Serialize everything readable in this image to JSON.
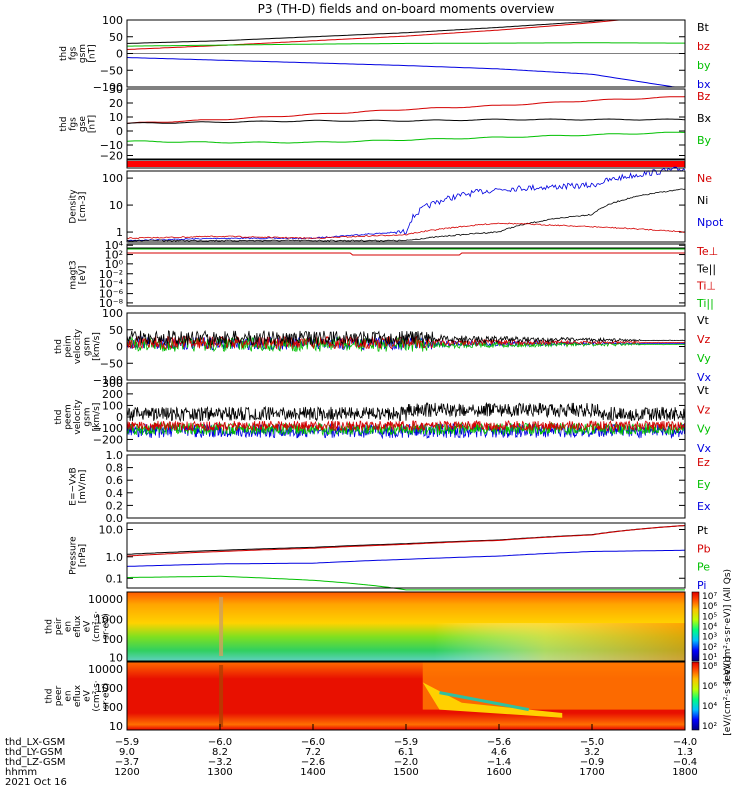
{
  "title": "P3 (TH-D) fields and on-board moments overview",
  "colors": {
    "black": "#000000",
    "red": "#d40000",
    "green": "#00c000",
    "blue": "#0000e0"
  },
  "panels": [
    {
      "ylabel": [
        "thd",
        "fgs",
        "gsm",
        "[nT]"
      ],
      "yticks": [
        "100",
        "50",
        "0",
        "−50",
        "−100"
      ],
      "legend": [
        {
          "text": "Bt",
          "color": "black"
        },
        {
          "text": "bz",
          "color": "red"
        },
        {
          "text": "by",
          "color": "green"
        },
        {
          "text": "bx",
          "color": "blue"
        }
      ]
    },
    {
      "ylabel": [
        "thd",
        "fgs",
        "gse",
        "[nT]"
      ],
      "yticks": [
        "30",
        "20",
        "10",
        "0",
        "−10",
        "−20"
      ],
      "legend": [
        {
          "text": "Bz",
          "color": "red"
        },
        {
          "text": "Bx",
          "color": "black"
        },
        {
          "text": "By",
          "color": "green"
        }
      ]
    },
    {
      "ylabel": [],
      "yticks": [],
      "legend": []
    },
    {
      "ylabel": [
        "Density",
        "[cm-3]"
      ],
      "yticks": [
        "100",
        "10",
        "1"
      ],
      "legend": [
        {
          "text": "Ne",
          "color": "red"
        },
        {
          "text": "Ni",
          "color": "black"
        },
        {
          "text": "Npot",
          "color": "blue"
        }
      ]
    },
    {
      "ylabel": [
        "magt3",
        "[eV]"
      ],
      "yticks": [
        "10⁴",
        "10²",
        "10⁰",
        "10⁻²",
        "10⁻⁴",
        "10⁻⁶",
        "10⁻⁸"
      ],
      "legend": [
        {
          "text": "Te⊥",
          "color": "red"
        },
        {
          "text": "Te||",
          "color": "black"
        },
        {
          "text": "Ti⊥",
          "color": "red"
        },
        {
          "text": "Ti||",
          "color": "green"
        }
      ]
    },
    {
      "ylabel": [
        "thd",
        "peim",
        "velocity",
        "gsm",
        "[km/s]"
      ],
      "yticks": [
        "100",
        "50",
        "0",
        "−50",
        "−100"
      ],
      "legend": [
        {
          "text": "Vt",
          "color": "black"
        },
        {
          "text": "Vz",
          "color": "red"
        },
        {
          "text": "Vy",
          "color": "green"
        },
        {
          "text": "Vx",
          "color": "blue"
        }
      ]
    },
    {
      "ylabel": [
        "thd",
        "peem",
        "velocity",
        "gsm",
        "[km/s]"
      ],
      "yticks": [
        "300",
        "200",
        "100",
        "0",
        "−100",
        "−200"
      ],
      "legend": [
        {
          "text": "Vt",
          "color": "black"
        },
        {
          "text": "Vz",
          "color": "red"
        },
        {
          "text": "Vy",
          "color": "green"
        },
        {
          "text": "Vx",
          "color": "blue"
        }
      ]
    },
    {
      "ylabel": [
        "E=−VxB",
        "[mV/m]"
      ],
      "yticks": [
        "1.0",
        "0.8",
        "0.6",
        "0.4",
        "0.2",
        "0.0"
      ],
      "legend": [
        {
          "text": "Ez",
          "color": "red"
        },
        {
          "text": "Ey",
          "color": "green"
        },
        {
          "text": "Ex",
          "color": "blue"
        }
      ]
    },
    {
      "ylabel": [
        "Pressure",
        "[nPa]"
      ],
      "yticks": [
        "10.0",
        "1.0",
        "0.1"
      ],
      "legend": [
        {
          "text": "Pt",
          "color": "black"
        },
        {
          "text": "Pb",
          "color": "red"
        },
        {
          "text": "Pe",
          "color": "green"
        },
        {
          "text": "Pi",
          "color": "blue"
        }
      ]
    },
    {
      "ylabel": [
        "thd",
        "peir",
        "en",
        "eflux",
        "eV",
        "(cm²·s·",
        "sr·eV)"
      ],
      "yticks": [
        "10000",
        "1000",
        "100",
        "10"
      ],
      "legend": []
    },
    {
      "ylabel": [
        "thd",
        "peer",
        "en",
        "eflux",
        "eV",
        "(cm²·s·",
        "sr·eV)"
      ],
      "yticks": [
        "10000",
        "1000",
        "100",
        "10"
      ],
      "legend": []
    }
  ],
  "colorbars": [
    {
      "ticks": [
        "10⁷",
        "10⁶",
        "10⁵",
        "10⁴",
        "10³",
        "10²",
        "10¹"
      ],
      "label": "[eV/(cm²·s·sr·eV)] (All Qs)"
    },
    {
      "ticks": [
        "10⁸",
        "10⁶",
        "10⁴",
        "10²"
      ],
      "label": "[eV/(cm²·s·sr·eV)]"
    }
  ],
  "xaxis": {
    "rows": [
      {
        "label": "thd_LX-GSM",
        "values": [
          "−5.9",
          "−6.0",
          "−6.0",
          "−5.9",
          "−5.6",
          "−5.0",
          "−4.0"
        ]
      },
      {
        "label": "thd_LY-GSM",
        "values": [
          "9.0",
          "8.2",
          "7.2",
          "6.1",
          "4.6",
          "3.2",
          "1.3"
        ]
      },
      {
        "label": "thd_LZ-GSM",
        "values": [
          "−3.7",
          "−3.2",
          "−2.6",
          "−2.0",
          "−1.4",
          "−0.9",
          "−0.4"
        ]
      },
      {
        "label": "hhmm",
        "values": [
          "1200",
          "1300",
          "1400",
          "1500",
          "1600",
          "1700",
          "1800"
        ]
      }
    ],
    "date": "2021 Oct 16"
  },
  "chart_data": {
    "type": "line",
    "title": "P3 (TH-D) fields and on-board moments overview",
    "x_hhmm": [
      1200,
      1300,
      1400,
      1500,
      1600,
      1700,
      1800
    ],
    "series": [
      {
        "panel": "fgs gsm",
        "name": "Bt",
        "values": [
          30,
          38,
          50,
          62,
          78,
          96,
          122
        ]
      },
      {
        "panel": "fgs gsm",
        "name": "bz",
        "values": [
          12,
          24,
          38,
          52,
          70,
          92,
          120
        ]
      },
      {
        "panel": "fgs gsm",
        "name": "by",
        "values": [
          22,
          25,
          28,
          30,
          31,
          32,
          31
        ]
      },
      {
        "panel": "fgs gsm",
        "name": "bx",
        "values": [
          -12,
          -20,
          -28,
          -36,
          -46,
          -62,
          -105
        ]
      },
      {
        "panel": "fgs gse",
        "name": "Bz",
        "values": [
          3,
          6,
          10,
          14,
          17,
          21,
          24
        ]
      },
      {
        "panel": "fgs gse",
        "name": "Bx",
        "values": [
          3,
          4,
          5,
          5,
          6,
          6,
          6
        ]
      },
      {
        "panel": "fgs gse",
        "name": "By",
        "values": [
          -11,
          -12,
          -12,
          -10,
          -8,
          -6,
          -4
        ]
      },
      {
        "panel": "Density",
        "name": "Npot",
        "values": [
          0.5,
          0.6,
          0.6,
          1.0,
          30,
          40,
          150
        ]
      },
      {
        "panel": "Density",
        "name": "Ni",
        "values": [
          0.5,
          0.5,
          0.5,
          0.5,
          1,
          4,
          30
        ]
      },
      {
        "panel": "Density",
        "name": "Ne",
        "values": [
          0.6,
          0.7,
          0.6,
          0.8,
          2,
          1.5,
          1
        ]
      },
      {
        "panel": "Pressure",
        "name": "Pt",
        "values": [
          0.7,
          1.0,
          1.3,
          1.8,
          2.5,
          4,
          9
        ]
      },
      {
        "panel": "Pressure",
        "name": "Pb",
        "values": [
          0.6,
          0.9,
          1.2,
          1.7,
          2.4,
          3.9,
          9
        ]
      },
      {
        "panel": "Pressure",
        "name": "Pi",
        "values": [
          0.24,
          0.3,
          0.32,
          0.45,
          0.6,
          0.9,
          1.0
        ]
      },
      {
        "panel": "Pressure",
        "name": "Pe",
        "values": [
          0.09,
          0.1,
          0.07,
          0.03,
          0.03,
          0.03,
          0.03
        ]
      }
    ]
  }
}
